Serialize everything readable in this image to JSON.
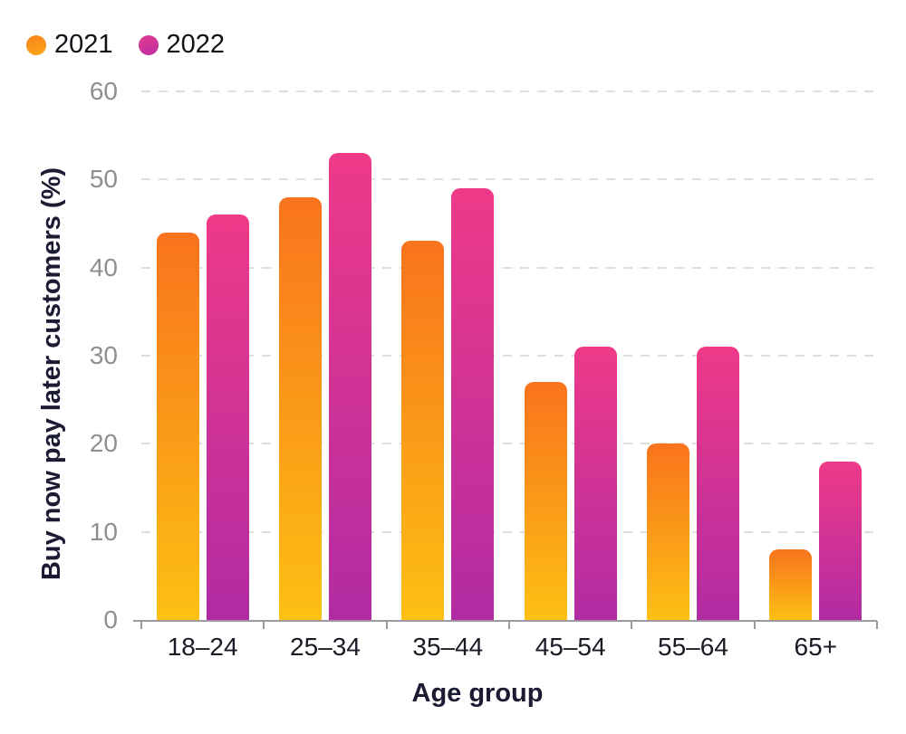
{
  "chart_data": {
    "type": "bar",
    "categories": [
      "18–24",
      "25–34",
      "35–44",
      "45–54",
      "55–64",
      "65+"
    ],
    "series": [
      {
        "name": "2021",
        "values": [
          44,
          48,
          43,
          27,
          20,
          8
        ],
        "gradient_top": "#f9731d",
        "gradient_bottom": "#fcc013"
      },
      {
        "name": "2022",
        "values": [
          46,
          53,
          49,
          31,
          31,
          18
        ],
        "gradient_top": "#ee3a88",
        "gradient_bottom": "#b22ba3"
      }
    ],
    "title": "",
    "xlabel": "Age group",
    "ylabel": "Buy now pay later customers (%)",
    "ylim": [
      0,
      60
    ],
    "yticks": [
      0,
      10,
      20,
      30,
      40,
      50,
      60
    ],
    "grid": "horizontal-dashed",
    "legend_position": "top-left"
  },
  "colors": {
    "background": "#ffffff",
    "gridline": "#dedede",
    "axis_line": "#9a9aa0",
    "y_tick_text": "#8e8e93",
    "x_tick_text": "#1a1a24",
    "axis_title_text": "#1b1b33",
    "legend_text": "#111118"
  }
}
